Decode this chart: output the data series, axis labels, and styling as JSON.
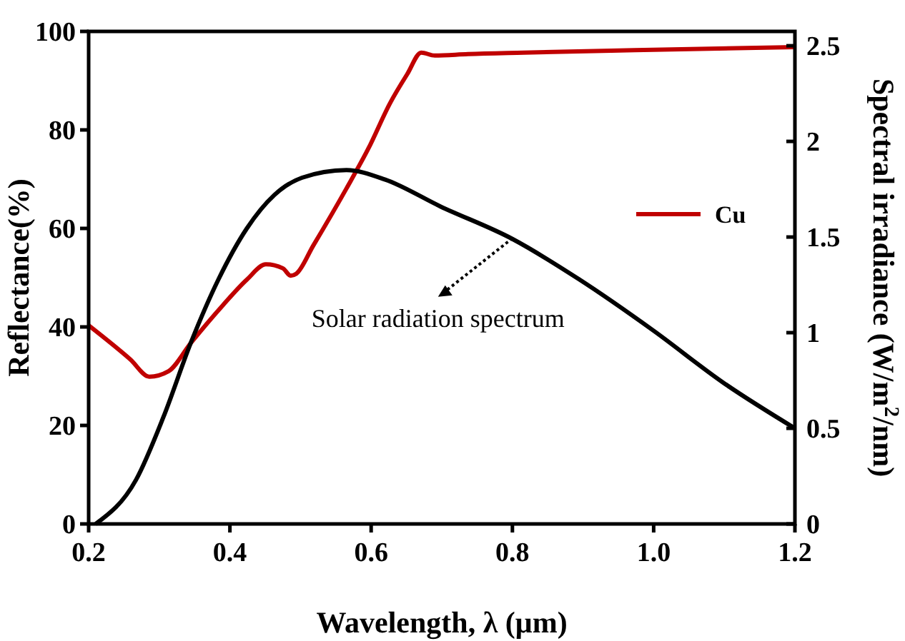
{
  "chart_data": {
    "type": "line",
    "xlabel": "Wavelength, λ (μm)",
    "ylabel": "Reflectance(%)",
    "y2label": "Spectral irradiance (W/m$^{2}$/nm)",
    "xlim": [
      0.2,
      1.2
    ],
    "xticks": [
      0.2,
      0.4,
      0.6,
      0.8,
      "1.0",
      1.2
    ],
    "ylim": [
      0,
      100
    ],
    "yticks": [
      0,
      20,
      40,
      60,
      80,
      100
    ],
    "y2lim": [
      0,
      2.575
    ],
    "y2ticks": [
      0,
      0.5,
      1,
      1.5,
      2,
      2.5
    ],
    "grid": false,
    "legend": "right",
    "line_style": "solid",
    "marker": "none",
    "annotations": [
      {
        "text": "Solar radiation spectrum",
        "x": 0.8,
        "y": 58
      }
    ],
    "series": [
      {
        "name": "Cu",
        "color": "#c00000",
        "x": [
          0.2,
          0.259,
          0.286,
          0.313,
          0.345,
          0.39,
          0.424,
          0.451,
          0.475,
          0.486,
          0.494,
          0.518,
          0.565,
          0.596,
          0.627,
          0.651,
          0.671,
          0.69,
          0.737,
          0.816,
          0.973,
          1.2
        ],
        "values": [
          40.3,
          33.4,
          29.9,
          31,
          36.8,
          44.4,
          49.6,
          52.7,
          51.9,
          50.4,
          50.8,
          56.5,
          68.1,
          76.2,
          85.5,
          91.3,
          95.7,
          95.1,
          95.4,
          95.7,
          96.2,
          96.8
        ]
      },
      {
        "color": "#000000",
        "axis": "y2",
        "x": [
          0.21,
          0.267,
          0.306,
          0.345,
          0.384,
          0.424,
          0.463,
          0.502,
          0.565,
          0.62,
          0.698,
          0.8,
          0.894,
          1.0,
          1.098,
          1.2
        ],
        "values": [
          0,
          0.23,
          0.56,
          0.95,
          1.28,
          1.545,
          1.72,
          1.81,
          1.85,
          1.8,
          1.66,
          1.49,
          1.28,
          1.01,
          0.74,
          0.5
        ]
      }
    ]
  }
}
